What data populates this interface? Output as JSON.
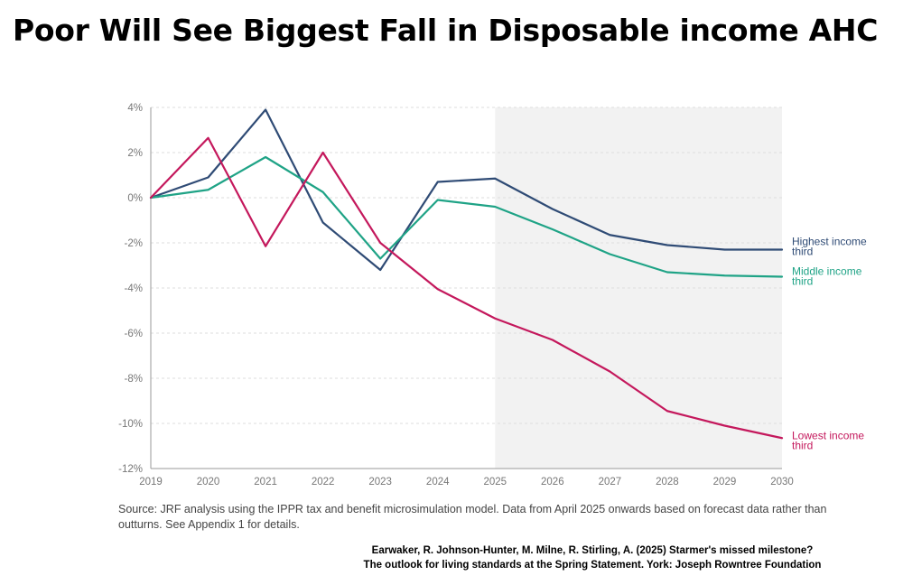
{
  "title": "Poor Will See Biggest Fall in Disposable income AHC",
  "source": "Source: JRF analysis using the IPPR tax and benefit microsimulation model. Data from April 2025 onwards based on forecast data rather than outturns. See Appendix 1 for details.",
  "citation_line1": "Earwaker, R. Johnson-Hunter, M. Milne, R. Stirling, A. (2025) Starmer's missed milestone?",
  "citation_line2": "The outlook for living standards at the Spring Statement. York: Joseph Rowntree Foundation",
  "colors": {
    "highest": "#2f4b75",
    "middle": "#1fa386",
    "lowest": "#c4185c",
    "forecast_shade": "#f2f2f2",
    "axis_text": "#777777",
    "grid": "#dddddd"
  },
  "chart_data": {
    "type": "line",
    "x": [
      2019,
      2020,
      2021,
      2022,
      2023,
      2024,
      2025,
      2026,
      2027,
      2028,
      2029,
      2030
    ],
    "ylim": [
      -12,
      4
    ],
    "yticks": [
      4,
      2,
      0,
      -2,
      -4,
      -6,
      -8,
      -10,
      -12
    ],
    "ytick_labels": [
      "4%",
      "2%",
      "0%",
      "-2%",
      "-4%",
      "-6%",
      "-8%",
      "-10%",
      "-12%"
    ],
    "xtick_labels": [
      "2019",
      "2020",
      "2021",
      "2022",
      "2023",
      "2024",
      "2025",
      "2026",
      "2027",
      "2028",
      "2029",
      "2030"
    ],
    "forecast_from": 2025,
    "grid": true,
    "legend": "inline-right",
    "series": [
      {
        "key": "highest",
        "label_line1": "Highest income",
        "label_line2": "third",
        "values": [
          0,
          0.9,
          3.9,
          -1.1,
          -3.2,
          0.7,
          0.85,
          -0.5,
          -1.65,
          -2.1,
          -2.3,
          -2.3
        ]
      },
      {
        "key": "middle",
        "label_line1": "Middle income",
        "label_line2": "third",
        "values": [
          0,
          0.35,
          1.8,
          0.25,
          -2.7,
          -0.1,
          -0.4,
          -1.4,
          -2.5,
          -3.3,
          -3.45,
          -3.5
        ]
      },
      {
        "key": "lowest",
        "label_line1": "Lowest income",
        "label_line2": "third",
        "values": [
          0,
          2.65,
          -2.15,
          2.0,
          -2.0,
          -4.05,
          -5.35,
          -6.3,
          -7.7,
          -9.45,
          -10.1,
          -10.65
        ]
      }
    ]
  }
}
